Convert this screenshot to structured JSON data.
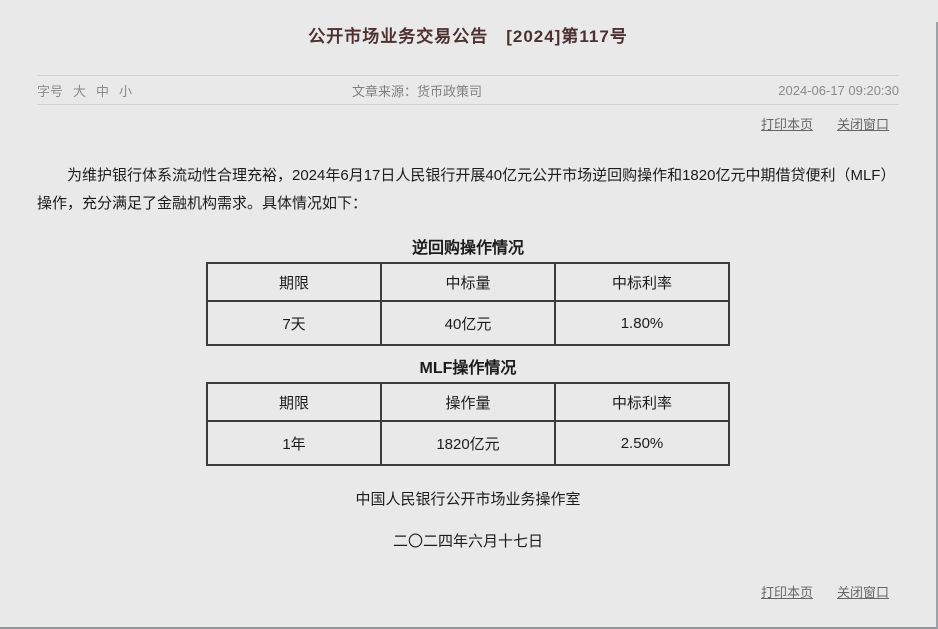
{
  "colors": {
    "background": "#e9e9e9",
    "title_text": "#4e3030",
    "meta_text": "#8a8a8a",
    "link_text": "#666666",
    "body_text": "#1c1c1c",
    "table_border": "#3c3c3c",
    "divider": "#d2d2d2"
  },
  "header": {
    "title": "公开市场业务交易公告　[2024]第117号",
    "font_size_label": "字号",
    "font_size_options": [
      "大",
      "中",
      "小"
    ],
    "source": "文章来源：货币政策司",
    "datetime": "2024-06-17 09:20:30",
    "print_link": "打印本页",
    "close_link": "关闭窗口"
  },
  "content": {
    "paragraph": "为维护银行体系流动性合理充裕，2024年6月17日人民银行开展40亿元公开市场逆回购操作和1820亿元中期借贷便利（MLF）操作，充分满足了金融机构需求。具体情况如下：",
    "signature": "中国人民银行公开市场业务操作室",
    "signature_date": "二〇二四年六月十七日"
  },
  "tables": [
    {
      "heading": "逆回购操作情况",
      "headers": [
        "期限",
        "中标量",
        "中标利率"
      ],
      "rows": [
        [
          "7天",
          "40亿元",
          "1.80%"
        ]
      ]
    },
    {
      "heading": "MLF操作情况",
      "headers": [
        "期限",
        "操作量",
        "中标利率"
      ],
      "rows": [
        [
          "1年",
          "1820亿元",
          "2.50%"
        ]
      ]
    }
  ],
  "footer": {
    "print_link": "打印本页",
    "close_link": "关闭窗口"
  }
}
